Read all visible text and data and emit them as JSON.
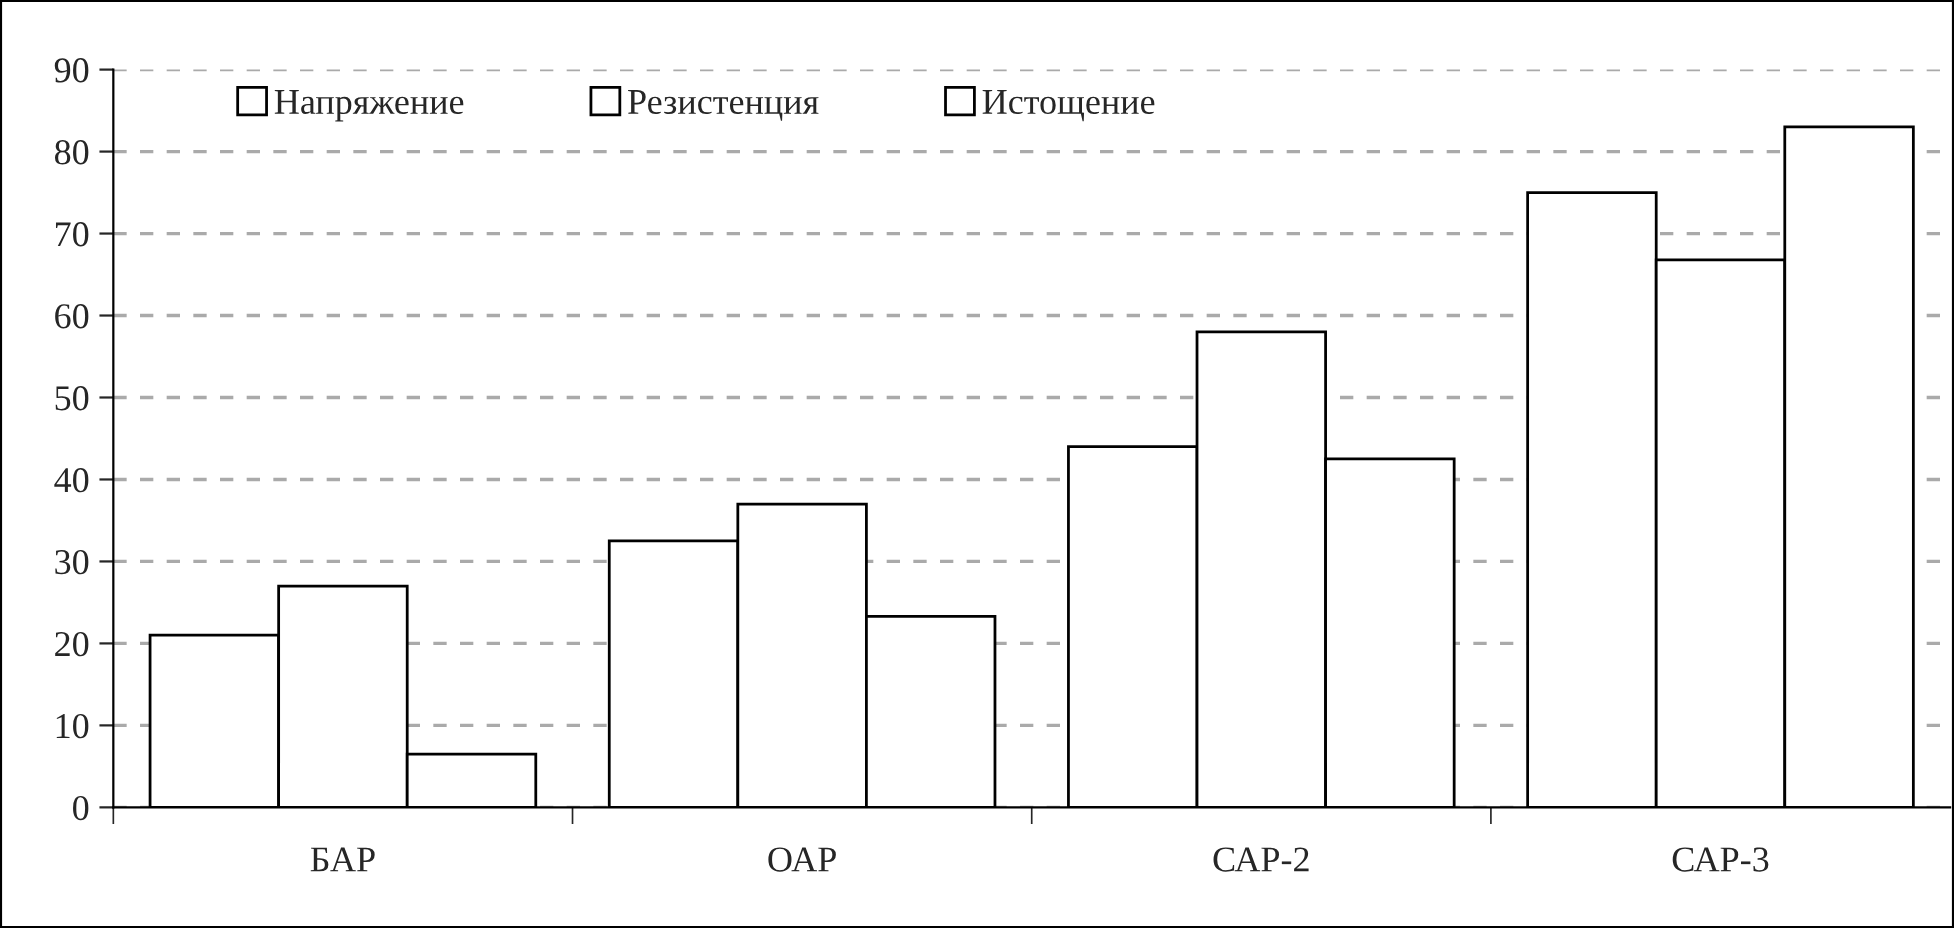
{
  "chart_data": {
    "type": "bar",
    "categories": [
      "БАР",
      "ОАР",
      "САР-2",
      "САР-3"
    ],
    "series": [
      {
        "name": "Напряжение",
        "color": "#ffffff",
        "values": [
          21,
          32.5,
          44,
          75
        ]
      },
      {
        "name": "Резистенция",
        "color": "#ffffff",
        "values": [
          27,
          37,
          58,
          66.8
        ]
      },
      {
        "name": "Истощение",
        "color": "#ffffff",
        "values": [
          6.5,
          23.3,
          42.5,
          83
        ]
      }
    ],
    "ylim": [
      0,
      90
    ],
    "yticks": [
      0,
      10,
      20,
      30,
      40,
      50,
      60,
      70,
      80,
      90
    ],
    "grid": "y",
    "legend": "top left"
  }
}
